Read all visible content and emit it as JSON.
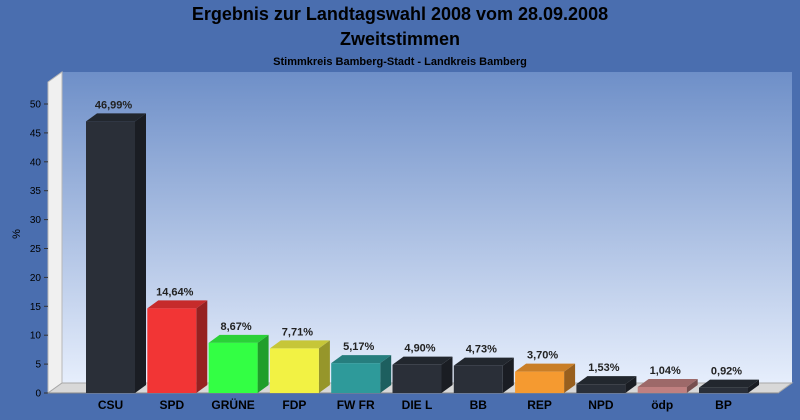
{
  "colors": {
    "background": "#4a6eaf",
    "plot_top": "#6e8fc8",
    "plot_bottom": "#e6eefc"
  },
  "chart_data": {
    "type": "bar",
    "title": "Ergebnis zur Landtagswahl 2008 vom 28.09.2008",
    "subtitle": "Zweitstimmen",
    "caption": "Stimmkreis Bamberg-Stadt - Landkreis Bamberg",
    "xlabel": "",
    "ylabel": "%",
    "ylim": [
      0,
      50
    ],
    "yticks": [
      0,
      5,
      10,
      15,
      20,
      25,
      30,
      35,
      40,
      45,
      50
    ],
    "grid": false,
    "categories": [
      "CSU",
      "SPD",
      "GRÜNE",
      "FDP",
      "FW FR",
      "DIE L",
      "BB",
      "REP",
      "NPD",
      "ödp",
      "BP"
    ],
    "values": [
      46.99,
      14.64,
      8.67,
      7.71,
      5.17,
      4.9,
      4.73,
      3.7,
      1.53,
      1.04,
      0.92
    ],
    "labels": [
      "46,99%",
      "14,64%",
      "8,67%",
      "7,71%",
      "5,17%",
      "4,90%",
      "4,73%",
      "3,70%",
      "1,53%",
      "1,04%",
      "0,92%"
    ],
    "bar_colors": [
      "#2a2f38",
      "#f23535",
      "#33ff44",
      "#f2f244",
      "#2e9a9a",
      "#2a2f38",
      "#2a2f38",
      "#f59a30",
      "#2a2f38",
      "#c08080",
      "#2a2f38"
    ]
  }
}
